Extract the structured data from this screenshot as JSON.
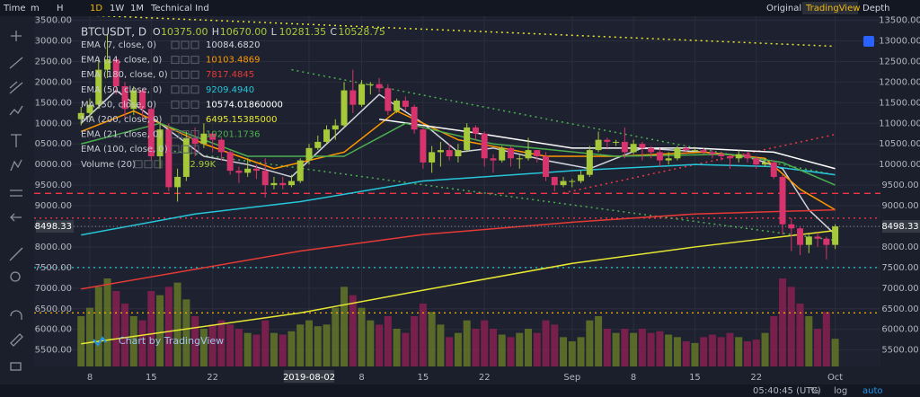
{
  "toolbar": {
    "intervals": [
      "Time",
      "m",
      "H",
      "1D",
      "1W",
      "1M",
      "Technical Ind"
    ],
    "views": [
      "Original",
      "TradingView",
      "Depth"
    ]
  },
  "status": {
    "time": "05:40:45 (UTC)",
    "percent": "%",
    "log": "log",
    "auto": "auto"
  },
  "watermark": "Chart by TradingView",
  "chart_data": {
    "type": "candlestick",
    "title": "BTCUSDT, D",
    "ohlc_readout": [
      {
        "key": "O",
        "text": "10375.00"
      },
      {
        "key": "H",
        "text": "10670.00"
      },
      {
        "key": "L",
        "text": "10281.35"
      },
      {
        "key": "C",
        "text": "10528.75"
      }
    ],
    "categories": [
      "2019-07-07",
      "2019-07-08",
      "2019-07-09",
      "2019-07-10",
      "2019-07-11",
      "2019-07-12",
      "2019-07-13",
      "2019-07-14",
      "2019-07-15",
      "2019-07-16",
      "2019-07-17",
      "2019-07-18",
      "2019-07-19",
      "2019-07-20",
      "2019-07-21",
      "2019-07-22",
      "2019-07-23",
      "2019-07-24",
      "2019-07-25",
      "2019-07-26",
      "2019-07-27",
      "2019-07-28",
      "2019-07-29",
      "2019-07-30",
      "2019-07-31",
      "2019-08-01",
      "2019-08-02",
      "2019-08-03",
      "2019-08-04",
      "2019-08-05",
      "2019-08-06",
      "2019-08-07",
      "2019-08-08",
      "2019-08-09",
      "2019-08-10",
      "2019-08-11",
      "2019-08-12",
      "2019-08-13",
      "2019-08-14",
      "2019-08-15",
      "2019-08-16",
      "2019-08-17",
      "2019-08-18",
      "2019-08-19",
      "2019-08-20",
      "2019-08-21",
      "2019-08-22",
      "2019-08-23",
      "2019-08-24",
      "2019-08-25",
      "2019-08-26",
      "2019-08-27",
      "2019-08-28",
      "2019-08-29",
      "2019-08-30",
      "2019-08-31",
      "2019-09-01",
      "2019-09-02",
      "2019-09-03",
      "2019-09-04",
      "2019-09-05",
      "2019-09-06",
      "2019-09-07",
      "2019-09-08",
      "2019-09-09",
      "2019-09-10",
      "2019-09-11",
      "2019-09-12",
      "2019-09-13",
      "2019-09-14",
      "2019-09-15",
      "2019-09-16",
      "2019-09-17",
      "2019-09-18",
      "2019-09-19",
      "2019-09-20",
      "2019-09-21",
      "2019-09-22",
      "2019-09-23",
      "2019-09-24",
      "2019-09-25",
      "2019-09-26",
      "2019-09-27",
      "2019-09-28",
      "2019-09-29",
      "2019-09-30",
      "2019-10-01"
    ],
    "open": [
      11100,
      11250,
      11450,
      12300,
      12550,
      11900,
      11350,
      11800,
      11350,
      10200,
      10850,
      9450,
      9700,
      10650,
      10500,
      10750,
      10600,
      10300,
      9850,
      9800,
      9900,
      9850,
      9500,
      9550,
      9500,
      9600,
      10100,
      10400,
      10550,
      10850,
      10950,
      11800,
      11450,
      11950,
      11950,
      11850,
      11300,
      11550,
      11400,
      10850,
      10050,
      10300,
      10350,
      10200,
      10350,
      10900,
      10750,
      10150,
      10100,
      10400,
      10150,
      10150,
      10350,
      10200,
      9700,
      9500,
      9600,
      9600,
      9750,
      10350,
      10600,
      10550,
      10550,
      10300,
      10500,
      10400,
      10300,
      10100,
      10150,
      10400,
      10350,
      10350,
      10300,
      10250,
      10200,
      10150,
      10250,
      10150,
      10000,
      10050,
      9700,
      8550,
      8450,
      8050,
      8250,
      8200,
      8050
    ],
    "high": [
      11400,
      11600,
      12600,
      13150,
      12600,
      12000,
      11900,
      11850,
      11400,
      11000,
      11000,
      9900,
      10800,
      10900,
      11000,
      10800,
      10650,
      10350,
      9950,
      10150,
      10000,
      10150,
      9700,
      9700,
      9750,
      10150,
      10500,
      10700,
      10950,
      11100,
      12000,
      12300,
      12050,
      12000,
      12100,
      11950,
      11600,
      11650,
      11450,
      10900,
      10450,
      10550,
      10500,
      10500,
      11000,
      10950,
      10800,
      10250,
      10450,
      10450,
      10250,
      10650,
      10350,
      10300,
      9700,
      9700,
      9650,
      9850,
      10450,
      10800,
      10650,
      10600,
      10900,
      10600,
      10550,
      10450,
      10400,
      10300,
      10450,
      10450,
      10400,
      10400,
      10350,
      10300,
      10250,
      10350,
      10300,
      10200,
      10150,
      10100,
      9750,
      8700,
      8500,
      8300,
      8350,
      8250,
      8550
    ],
    "low": [
      10950,
      11100,
      11350,
      12100,
      11700,
      11100,
      11200,
      11100,
      10100,
      9900,
      9350,
      9100,
      9600,
      10200,
      10400,
      10300,
      10100,
      9750,
      9550,
      9700,
      9650,
      9200,
      9400,
      9400,
      9450,
      9550,
      10000,
      10350,
      10500,
      10600,
      10900,
      11250,
      11400,
      11700,
      11750,
      11200,
      11250,
      11300,
      10750,
      9900,
      9800,
      9950,
      10100,
      10050,
      10300,
      10600,
      9950,
      9800,
      10050,
      9950,
      9900,
      10100,
      10050,
      9600,
      9350,
      9450,
      9450,
      9550,
      9700,
      10300,
      10400,
      10450,
      10150,
      10250,
      10100,
      10150,
      9950,
      10000,
      10100,
      10250,
      10300,
      10250,
      10150,
      10100,
      9900,
      10050,
      10050,
      9900,
      9950,
      9650,
      8300,
      7900,
      7800,
      7850,
      8000,
      7700,
      7950
    ],
    "close": [
      11250,
      11450,
      12300,
      12550,
      11900,
      11350,
      11800,
      11350,
      10200,
      10850,
      9450,
      9700,
      10650,
      10500,
      10750,
      10600,
      10300,
      9850,
      9800,
      9900,
      9850,
      9500,
      9550,
      9500,
      9600,
      10100,
      10400,
      10550,
      10850,
      10950,
      11800,
      11450,
      11950,
      11950,
      11850,
      11300,
      11550,
      11400,
      10850,
      10050,
      10300,
      10350,
      10200,
      10350,
      10900,
      10750,
      10150,
      10100,
      10400,
      10150,
      10150,
      10350,
      10200,
      9700,
      9500,
      9600,
      9600,
      9750,
      10350,
      10600,
      10550,
      10550,
      10300,
      10500,
      10400,
      10300,
      10100,
      10150,
      10400,
      10350,
      10350,
      10300,
      10250,
      10200,
      10150,
      10250,
      10150,
      10000,
      10050,
      9700,
      8550,
      8450,
      8050,
      8250,
      8200,
      8050,
      8498.33
    ],
    "up_color": "#a6c93a",
    "down_color": "#d7336c",
    "volume": {
      "name": "Volume (20)",
      "value_label": "32.99K",
      "up_color": "#5f7228",
      "down_color": "#82204f",
      "ylim": [
        0,
        150
      ],
      "values": [
        60,
        70,
        95,
        105,
        90,
        75,
        60,
        55,
        90,
        85,
        95,
        100,
        80,
        60,
        45,
        50,
        55,
        50,
        45,
        40,
        38,
        55,
        40,
        38,
        42,
        50,
        55,
        48,
        50,
        70,
        95,
        85,
        70,
        55,
        50,
        60,
        45,
        40,
        60,
        75,
        65,
        50,
        35,
        40,
        55,
        45,
        55,
        45,
        38,
        35,
        40,
        45,
        40,
        55,
        50,
        35,
        30,
        35,
        55,
        60,
        45,
        40,
        45,
        40,
        45,
        40,
        42,
        38,
        35,
        30,
        28,
        35,
        38,
        35,
        40,
        35,
        30,
        32,
        40,
        60,
        105,
        95,
        75,
        60,
        45,
        65,
        32.99
      ]
    },
    "indicators": [
      {
        "name": "EMA (7, close, 0)",
        "color": "#d1d4dc",
        "reading": "10084.6820",
        "x": [
          "2019-07-07",
          "2019-07-11",
          "2019-07-16",
          "2019-07-21",
          "2019-07-26",
          "2019-07-31",
          "2019-08-05",
          "2019-08-10",
          "2019-08-15",
          "2019-08-19",
          "2019-08-23",
          "2019-08-29",
          "2019-09-03",
          "2019-09-09",
          "2019-09-16",
          "2019-09-21",
          "2019-09-25",
          "2019-09-28",
          "2019-10-01"
        ],
        "values": [
          11000,
          11800,
          11000,
          10200,
          10000,
          9700,
          10700,
          11700,
          11000,
          10300,
          10400,
          10100,
          9900,
          10400,
          10300,
          10200,
          9900,
          8900,
          8300
        ]
      },
      {
        "name": "EMA (14, close, 0)",
        "color": "#ff9800",
        "reading": "10103.4869",
        "x": [
          "2019-07-07",
          "2019-07-13",
          "2019-07-21",
          "2019-07-29",
          "2019-08-06",
          "2019-08-12",
          "2019-08-19",
          "2019-08-29",
          "2019-09-06",
          "2019-09-16",
          "2019-09-23",
          "2019-09-27",
          "2019-10-01"
        ],
        "values": [
          10800,
          11300,
          10500,
          9900,
          10300,
          11300,
          10600,
          10200,
          10200,
          10300,
          10150,
          9400,
          8900
        ]
      },
      {
        "name": "EMA (180, close, 0)",
        "color": "#e53935",
        "reading": "7817.4845",
        "x": [
          "2019-07-07",
          "2019-08-01",
          "2019-08-15",
          "2019-09-01",
          "2019-09-15",
          "2019-10-01"
        ],
        "values": [
          6980,
          7900,
          8300,
          8600,
          8800,
          8900
        ]
      },
      {
        "name": "EMA (50, close, 0)",
        "color": "#26c6da",
        "reading": "9209.4940",
        "x": [
          "2019-07-07",
          "2019-07-20",
          "2019-08-01",
          "2019-08-15",
          "2019-09-01",
          "2019-09-15",
          "2019-09-24",
          "2019-10-01"
        ],
        "values": [
          8290,
          8800,
          9100,
          9600,
          9850,
          10000,
          9950,
          9750
        ]
      },
      {
        "name": "MA (50, close, 0)",
        "color": "#ffffff",
        "reading": "10574.01860000",
        "x": [
          "2019-08-10",
          "2019-08-20",
          "2019-09-01",
          "2019-09-15",
          "2019-09-24",
          "2019-10-01"
        ],
        "values": [
          11100,
          10800,
          10400,
          10400,
          10300,
          9900
        ]
      },
      {
        "name": "MA (200, close, 0)",
        "color": "#e6e633",
        "reading": "6495.15385000",
        "x": [
          "2019-07-07",
          "2019-08-01",
          "2019-08-15",
          "2019-09-01",
          "2019-09-15",
          "2019-10-01"
        ],
        "values": [
          5650,
          6400,
          6950,
          7600,
          8000,
          8400
        ]
      },
      {
        "name": "EMA (21, close, 0)",
        "color": "#4caf50",
        "reading": "10201.1736",
        "x": [
          "2019-07-07",
          "2019-07-16",
          "2019-07-26",
          "2019-08-06",
          "2019-08-13",
          "2019-08-23",
          "2019-09-06",
          "2019-09-19",
          "2019-09-25",
          "2019-10-01"
        ],
        "values": [
          10500,
          11000,
          10200,
          10200,
          11000,
          10500,
          10200,
          10250,
          10050,
          9500
        ]
      },
      {
        "name": "EMA (100, close, 0)",
        "color": "#ffffff"
      }
    ],
    "levels": [
      {
        "value": 9300,
        "color": "#f23645",
        "dash": "7 5"
      },
      {
        "value": 8700,
        "color": "#f23645",
        "dash": "2 4"
      },
      {
        "value": 7500,
        "color": "#26c6da",
        "dash": "2 4"
      },
      {
        "value": 6400,
        "color": "#f5b400",
        "dash": "2 4"
      }
    ],
    "trendlines": [
      {
        "color": "#e6e633",
        "x": [
          "2019-07-07",
          "2019-10-01"
        ],
        "values": [
          13630,
          12870
        ]
      },
      {
        "color": "#4caf50",
        "x": [
          "2019-07-31",
          "2019-10-01"
        ],
        "values": [
          12300,
          9750
        ]
      },
      {
        "color": "#4caf50",
        "x": [
          "2019-07-17",
          "2019-10-01"
        ],
        "values": [
          10340,
          8160
        ]
      },
      {
        "color": "#f23645",
        "x": [
          "2019-08-31",
          "2019-10-01"
        ],
        "values": [
          9310,
          10730
        ]
      }
    ],
    "ylim": [
      5100,
      13600
    ],
    "yticks": [
      {
        "value": 5500,
        "label": "5500.00"
      },
      {
        "value": 6000,
        "label": "6000.00"
      },
      {
        "value": 6500,
        "label": "6500.00"
      },
      {
        "value": 7000,
        "label": "7000.00"
      },
      {
        "value": 7500,
        "label": "7500.00"
      },
      {
        "value": 8000,
        "label": "8000.00"
      },
      {
        "value": 8500,
        "label": "8500.00"
      },
      {
        "value": 9000,
        "label": "9000.00"
      },
      {
        "value": 9500,
        "label": "9500.00"
      },
      {
        "value": 10000,
        "label": "10000.00"
      },
      {
        "value": 10500,
        "label": "10500.00"
      },
      {
        "value": 11000,
        "label": "11000.00"
      },
      {
        "value": 11500,
        "label": "11500.00"
      },
      {
        "value": 12000,
        "label": "12000.00"
      },
      {
        "value": 12500,
        "label": "12500.00"
      },
      {
        "value": 13000,
        "label": "13000.00"
      },
      {
        "value": 13500,
        "label": "13500.00"
      }
    ],
    "xticks": [
      {
        "value": "2019-07-08",
        "label": "8"
      },
      {
        "value": "2019-07-15",
        "label": "15"
      },
      {
        "value": "2019-07-22",
        "label": "22"
      },
      "2019-08-02",
      {
        "value": "2019-08-08",
        "label": "8"
      },
      {
        "value": "2019-08-15",
        "label": "15"
      },
      {
        "value": "2019-08-22",
        "label": "22"
      },
      {
        "value": "2019-09-01",
        "label": "Sep"
      },
      {
        "value": "2019-09-08",
        "label": "8"
      },
      {
        "value": "2019-09-15",
        "label": "15"
      },
      {
        "value": "2019-09-22",
        "label": "22"
      },
      {
        "value": "2019-10-01",
        "label": "Oct"
      }
    ],
    "grid": true
  }
}
